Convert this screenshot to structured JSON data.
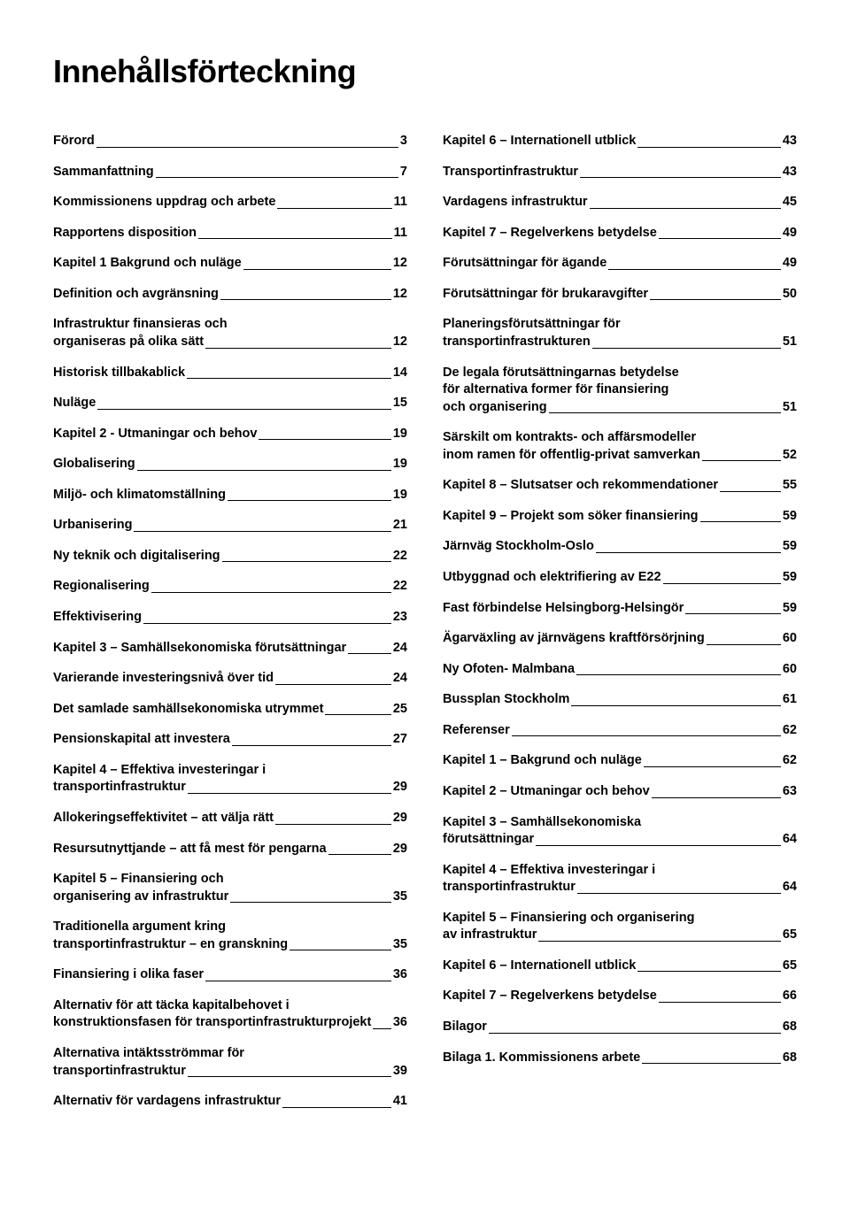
{
  "title": "Innehållsförteckning",
  "left": [
    {
      "label": "Förord",
      "page": "3",
      "bold": true
    },
    {
      "label": "Sammanfattning",
      "page": "7",
      "bold": true
    },
    {
      "label": "Kommissionens uppdrag och arbete",
      "page": "11",
      "bold": true
    },
    {
      "label": "Rapportens disposition",
      "page": "11",
      "bold": true
    },
    {
      "label": "Kapitel 1 Bakgrund och nuläge",
      "page": "12",
      "bold": true
    },
    {
      "label": "Definition och avgränsning",
      "page": "12",
      "bold": true
    },
    {
      "pre": [
        "Infrastruktur finansieras och"
      ],
      "last": "organiseras på olika sätt",
      "page": "12",
      "bold": true
    },
    {
      "label": "Historisk tillbakablick",
      "page": "14",
      "bold": true
    },
    {
      "label": "Nuläge",
      "page": "15",
      "bold": true
    },
    {
      "label": "Kapitel 2 - Utmaningar och behov",
      "page": "19",
      "bold": true
    },
    {
      "label": "Globalisering",
      "page": "19",
      "bold": true
    },
    {
      "label": "Miljö- och klimatomställning",
      "page": "19",
      "bold": true
    },
    {
      "label": "Urbanisering",
      "page": "21",
      "bold": true
    },
    {
      "label": "Ny teknik och digitalisering",
      "page": "22",
      "bold": true
    },
    {
      "label": "Regionalisering",
      "page": "22",
      "bold": true
    },
    {
      "label": "Effektivisering",
      "page": "23",
      "bold": true
    },
    {
      "label": "Kapitel 3 – Samhällsekonomiska förutsättningar",
      "page": "24",
      "bold": true
    },
    {
      "label": "Varierande investeringsnivå över tid",
      "page": "24",
      "bold": true
    },
    {
      "label": "Det samlade samhällsekonomiska utrymmet",
      "page": "25",
      "bold": true
    },
    {
      "label": "Pensionskapital att investera",
      "page": "27",
      "bold": true
    },
    {
      "pre": [
        "Kapitel 4 – Effektiva investeringar i"
      ],
      "last": "transportinfrastruktur",
      "page": "29",
      "bold": true
    },
    {
      "label": "Allokeringseffektivitet – att välja rätt",
      "page": "29",
      "bold": true
    },
    {
      "label": "Resursutnyttjande – att få mest för pengarna",
      "page": "29",
      "bold": true
    },
    {
      "pre": [
        "Kapitel 5 – Finansiering och"
      ],
      "last": "organisering av infrastruktur",
      "page": "35",
      "bold": true
    },
    {
      "pre": [
        "Traditionella argument kring"
      ],
      "last": "transportinfrastruktur – en granskning",
      "page": "35",
      "bold": true
    },
    {
      "label": "Finansiering i olika faser",
      "page": "36",
      "bold": true
    },
    {
      "pre": [
        "Alternativ för att täcka kapitalbehovet i"
      ],
      "last": "konstruktionsfasen för transportinfrastrukturprojekt",
      "page": "36",
      "bold": true
    },
    {
      "pre": [
        "Alternativa intäktsströmmar för"
      ],
      "last": "transportinfrastruktur",
      "page": "39",
      "bold": true
    },
    {
      "label": "Alternativ för vardagens infrastruktur",
      "page": "41",
      "bold": true
    }
  ],
  "right": [
    {
      "label": "Kapitel 6 – Internationell utblick",
      "page": "43",
      "bold": true
    },
    {
      "label": "Transportinfrastruktur",
      "page": "43",
      "bold": true
    },
    {
      "label": "Vardagens infrastruktur",
      "page": "45",
      "bold": true
    },
    {
      "label": "Kapitel 7 – Regelverkens betydelse",
      "page": "49",
      "bold": true
    },
    {
      "label": "Förutsättningar för ägande",
      "page": "49",
      "bold": true
    },
    {
      "label": "Förutsättningar för brukaravgifter",
      "page": "50",
      "bold": true
    },
    {
      "pre": [
        "Planeringsförutsättningar för"
      ],
      "last": "transportinfrastrukturen",
      "page": "51",
      "bold": true
    },
    {
      "pre": [
        "De legala förutsättningarnas betydelse",
        "för alternativa former för finansiering"
      ],
      "last": "och organisering",
      "page": "51",
      "bold": true
    },
    {
      "pre": [
        "Särskilt om kontrakts- och affärsmodeller"
      ],
      "last": "inom ramen för offentlig-privat samverkan",
      "page": "52",
      "bold": true
    },
    {
      "label": "Kapitel 8 – Slutsatser och rekommendationer",
      "page": "55",
      "bold": true
    },
    {
      "label": "Kapitel 9 – Projekt som söker finansiering",
      "page": "59",
      "bold": true
    },
    {
      "label": "Järnväg Stockholm-Oslo",
      "page": "59",
      "bold": true
    },
    {
      "label": "Utbyggnad och elektrifiering av E22",
      "page": "59",
      "bold": true
    },
    {
      "label": "Fast förbindelse Helsingborg-Helsingör",
      "page": "59",
      "bold": true
    },
    {
      "label": "Ägarväxling av järnvägens kraftförsörjning",
      "page": "60",
      "bold": true
    },
    {
      "label": "Ny Ofoten- Malmbana",
      "page": "60",
      "bold": true
    },
    {
      "label": "Bussplan Stockholm",
      "page": "61",
      "bold": true
    },
    {
      "label": "Referenser",
      "page": "62",
      "bold": true
    },
    {
      "label": "Kapitel 1 – Bakgrund och nuläge",
      "page": "62",
      "bold": true
    },
    {
      "label": "Kapitel 2 – Utmaningar och behov",
      "page": "63",
      "bold": true
    },
    {
      "pre": [
        "Kapitel 3 – Samhällsekonomiska"
      ],
      "last": "förutsättningar",
      "page": "64",
      "bold": true
    },
    {
      "pre": [
        "Kapitel 4 – Effektiva investeringar i"
      ],
      "last": " transportinfrastruktur",
      "page": "64",
      "bold": true
    },
    {
      "pre": [
        "Kapitel 5 – Finansiering och organisering"
      ],
      "last": "av infrastruktur",
      "page": "65",
      "bold": true
    },
    {
      "label": "Kapitel 6 – Internationell utblick",
      "page": "65",
      "bold": true
    },
    {
      "label": "Kapitel 7 – Regelverkens betydelse",
      "page": "66",
      "bold": true
    },
    {
      "label": "Bilagor",
      "page": "68",
      "bold": true
    },
    {
      "label": "Bilaga 1. Kommissionens arbete",
      "page": "68",
      "bold": true
    }
  ]
}
